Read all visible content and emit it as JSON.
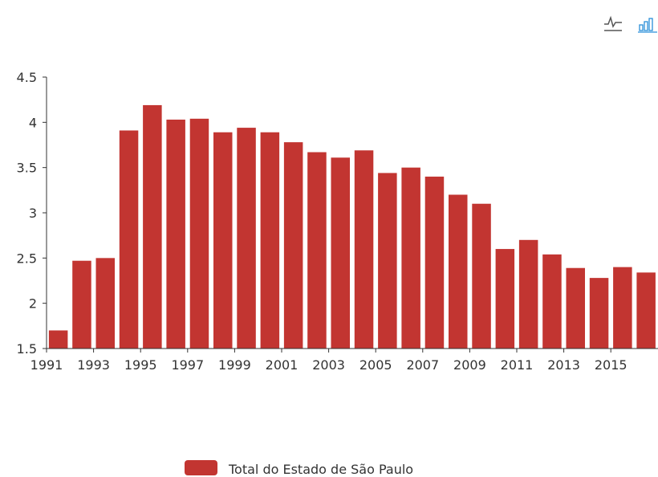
{
  "toolbar": {
    "buttons": [
      {
        "icon": "line-chart-icon",
        "color": "#555555"
      },
      {
        "icon": "bar-chart-icon",
        "color": "#2a8fd9"
      }
    ]
  },
  "colors": {
    "bar": "#c23531",
    "axis": "#333333"
  },
  "chart_data": {
    "type": "bar",
    "x": [
      "1991",
      "1992",
      "1993",
      "1994",
      "1995",
      "1996",
      "1997",
      "1998",
      "1999",
      "2000",
      "2001",
      "2002",
      "2003",
      "2004",
      "2005",
      "2006",
      "2007",
      "2008",
      "2009",
      "2010",
      "2011",
      "2012",
      "2013",
      "2014",
      "2015",
      "2016"
    ],
    "x_tick_labels": [
      "1991",
      "1993",
      "1995",
      "1997",
      "1999",
      "2001",
      "2003",
      "2005",
      "2007",
      "2009",
      "2011",
      "2013",
      "2015"
    ],
    "series": [
      {
        "name": "Total do Estado de São Paulo",
        "values": [
          1.7,
          2.47,
          2.5,
          3.91,
          4.19,
          4.03,
          4.04,
          3.89,
          3.94,
          3.89,
          3.78,
          3.67,
          3.61,
          3.69,
          3.44,
          3.5,
          3.4,
          3.2,
          3.1,
          2.6,
          2.7,
          2.54,
          2.39,
          2.28,
          2.4,
          2.34
        ]
      }
    ],
    "ylim": [
      1.5,
      4.5
    ],
    "y_ticks": [
      "1.5",
      "2",
      "2.5",
      "3",
      "3.5",
      "4",
      "4.5"
    ],
    "legend": {
      "position": "bottom-center"
    },
    "grid": false
  }
}
